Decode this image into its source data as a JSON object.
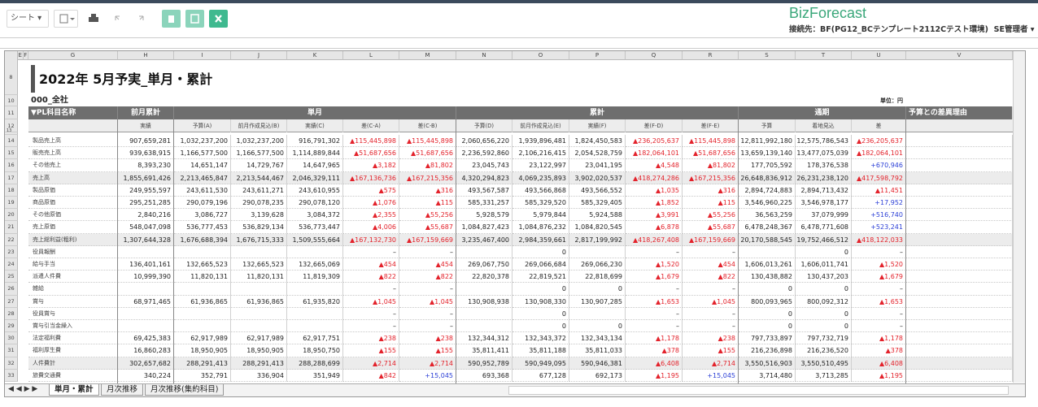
{
  "toolbar": {
    "sheet_menu": "シート",
    "brand": "BizForecast",
    "connection": "接続先：BF(PG12_BCテンプレート2112Cテスト環境)",
    "user": "SE管理者"
  },
  "column_letters": [
    "E",
    "F",
    "G",
    "H",
    "I",
    "J",
    "K",
    "L",
    "M",
    "N",
    "O",
    "P",
    "Q",
    "R",
    "S",
    "T",
    "U",
    "V"
  ],
  "title_row": {
    "row_number": "8",
    "title": "2022年 5月予実_単月・累計"
  },
  "dept_row": {
    "row_number": "10",
    "dept": "000_全社",
    "unit": "単位：円"
  },
  "header_row": {
    "row_number": "11",
    "item": "▼PL科目名称",
    "groups": [
      "前月累計",
      "単月",
      "累計",
      "通期",
      "予算との差異理由"
    ]
  },
  "subheader_row": {
    "row_number": "12",
    "labels": [
      "実績",
      "予算(A)",
      "前月作成見込(B)",
      "実績(C)",
      "差(C-A)",
      "差(C-B)",
      "予算(D)",
      "前月作成見込(E)",
      "実績(F)",
      "差(F-D)",
      "差(F-E)",
      "予算",
      "着地見込",
      "差"
    ]
  },
  "spacer_row_number": "13",
  "rows": [
    {
      "row_number": "14",
      "name": "製品売上高",
      "shaded": false,
      "cells": [
        "907,659,281",
        "1,032,237,200",
        "1,032,237,200",
        "916,791,302",
        "▲115,445,898",
        "▲115,445,898",
        "2,060,656,220",
        "1,939,896,481",
        "1,824,450,583",
        "▲236,205,637",
        "▲115,445,898",
        "12,811,992,180",
        "12,575,786,543",
        "▲236,205,637"
      ]
    },
    {
      "row_number": "15",
      "name": "販売売上高",
      "shaded": false,
      "cells": [
        "939,638,915",
        "1,166,577,500",
        "1,166,577,500",
        "1,114,889,844",
        "▲51,687,656",
        "▲51,687,656",
        "2,236,592,860",
        "2,106,216,415",
        "2,054,528,759",
        "▲182,064,101",
        "▲51,687,656",
        "13,659,139,140",
        "13,477,075,039",
        "▲182,064,101"
      ]
    },
    {
      "row_number": "16",
      "name": "その他売上",
      "shaded": false,
      "cells": [
        "8,393,230",
        "14,651,147",
        "14,729,767",
        "14,647,965",
        "▲3,182",
        "▲81,802",
        "23,045,743",
        "23,122,997",
        "23,041,195",
        "▲4,548",
        "▲81,802",
        "177,705,592",
        "178,376,538",
        "+670,946"
      ]
    },
    {
      "row_number": "17",
      "name": "売上高",
      "shaded": true,
      "cells": [
        "1,855,691,426",
        "2,213,465,847",
        "2,213,544,467",
        "2,046,329,111",
        "▲167,136,736",
        "▲167,215,356",
        "4,320,294,823",
        "4,069,235,893",
        "3,902,020,537",
        "▲418,274,286",
        "▲167,215,356",
        "26,648,836,912",
        "26,231,238,120",
        "▲417,598,792"
      ]
    },
    {
      "row_number": "18",
      "name": "製品原価",
      "shaded": false,
      "cells": [
        "249,955,597",
        "243,611,530",
        "243,611,271",
        "243,610,955",
        "▲575",
        "▲316",
        "493,567,587",
        "493,566,868",
        "493,566,552",
        "▲1,035",
        "▲316",
        "2,894,724,883",
        "2,894,713,432",
        "▲11,451"
      ]
    },
    {
      "row_number": "19",
      "name": "商品原価",
      "shaded": false,
      "cells": [
        "295,251,285",
        "290,079,196",
        "290,078,235",
        "290,078,120",
        "▲1,076",
        "▲115",
        "585,331,257",
        "585,329,520",
        "585,329,405",
        "▲1,852",
        "▲115",
        "3,546,960,225",
        "3,546,978,177",
        "+17,952"
      ]
    },
    {
      "row_number": "20",
      "name": "その他原価",
      "shaded": false,
      "cells": [
        "2,840,216",
        "3,086,727",
        "3,139,628",
        "3,084,372",
        "▲2,355",
        "▲55,256",
        "5,928,579",
        "5,979,844",
        "5,924,588",
        "▲3,991",
        "▲55,256",
        "36,563,259",
        "37,079,999",
        "+516,740"
      ]
    },
    {
      "row_number": "21",
      "name": "売上原価",
      "shaded": false,
      "cells": [
        "548,047,098",
        "536,777,453",
        "536,829,134",
        "536,773,447",
        "▲4,006",
        "▲55,687",
        "1,084,827,423",
        "1,084,876,232",
        "1,084,820,545",
        "▲6,878",
        "▲55,687",
        "6,478,248,367",
        "6,478,771,608",
        "+523,241"
      ]
    },
    {
      "row_number": "22",
      "name": "売上総利益(粗利)",
      "shaded": true,
      "cells": [
        "1,307,644,328",
        "1,676,688,394",
        "1,676,715,333",
        "1,509,555,664",
        "▲167,132,730",
        "▲167,159,669",
        "3,235,467,400",
        "2,984,359,661",
        "2,817,199,992",
        "▲418,267,408",
        "▲167,159,669",
        "20,170,588,545",
        "19,752,466,512",
        "▲418,122,033"
      ]
    },
    {
      "row_number": "23",
      "name": "役員報酬",
      "shaded": false,
      "cells": [
        null,
        null,
        null,
        null,
        "–",
        "–",
        null,
        "0",
        null,
        "–",
        "–",
        null,
        "0",
        "–"
      ]
    },
    {
      "row_number": "24",
      "name": "給与手当",
      "shaded": false,
      "cells": [
        "136,401,161",
        "132,665,523",
        "132,665,523",
        "132,665,069",
        "▲454",
        "▲454",
        "269,067,750",
        "269,066,684",
        "269,066,230",
        "▲1,520",
        "▲454",
        "1,606,013,261",
        "1,606,011,741",
        "▲1,520"
      ]
    },
    {
      "row_number": "25",
      "name": "派遣人件費",
      "shaded": false,
      "cells": [
        "10,999,390",
        "11,820,131",
        "11,820,131",
        "11,819,309",
        "▲822",
        "▲822",
        "22,820,378",
        "22,819,521",
        "22,818,699",
        "▲1,679",
        "▲822",
        "130,438,882",
        "130,437,203",
        "▲1,679"
      ]
    },
    {
      "row_number": "26",
      "name": "雑給",
      "shaded": false,
      "cells": [
        null,
        null,
        null,
        null,
        "–",
        "–",
        null,
        "0",
        "0",
        "–",
        "–",
        "0",
        "0",
        "–"
      ]
    },
    {
      "row_number": "27",
      "name": "賞与",
      "shaded": false,
      "cells": [
        "68,971,465",
        "61,936,865",
        "61,936,865",
        "61,935,820",
        "▲1,045",
        "▲1,045",
        "130,908,938",
        "130,908,330",
        "130,907,285",
        "▲1,653",
        "▲1,045",
        "800,093,965",
        "800,092,312",
        "▲1,653"
      ]
    },
    {
      "row_number": "28",
      "name": "役員賞与",
      "shaded": false,
      "cells": [
        null,
        null,
        null,
        null,
        "–",
        "–",
        null,
        "0",
        null,
        "–",
        "–",
        "0",
        "0",
        "–"
      ]
    },
    {
      "row_number": "29",
      "name": "賞与引当金繰入",
      "shaded": false,
      "cells": [
        null,
        null,
        null,
        null,
        "–",
        "–",
        null,
        "0",
        "0",
        "–",
        "–",
        "0",
        "0",
        "–"
      ]
    },
    {
      "row_number": "30",
      "name": "法定福利費",
      "shaded": false,
      "cells": [
        "69,425,383",
        "62,917,989",
        "62,917,989",
        "62,917,751",
        "▲238",
        "▲238",
        "132,344,312",
        "132,343,372",
        "132,343,134",
        "▲1,178",
        "▲238",
        "797,733,897",
        "797,732,719",
        "▲1,178"
      ]
    },
    {
      "row_number": "31",
      "name": "福利厚生費",
      "shaded": false,
      "cells": [
        "16,860,283",
        "18,950,905",
        "18,950,905",
        "18,950,750",
        "▲155",
        "▲155",
        "35,811,411",
        "35,811,188",
        "35,811,033",
        "▲378",
        "▲155",
        "216,236,898",
        "216,236,520",
        "▲378"
      ]
    },
    {
      "row_number": "32",
      "name": "人件費計",
      "shaded": true,
      "cells": [
        "302,657,682",
        "288,291,413",
        "288,291,413",
        "288,288,699",
        "▲2,714",
        "▲2,714",
        "590,952,789",
        "590,949,095",
        "590,946,381",
        "▲6,408",
        "▲2,714",
        "3,550,516,903",
        "3,550,510,495",
        "▲6,408"
      ]
    },
    {
      "row_number": "33",
      "name": "旅費交通費",
      "shaded": false,
      "cells": [
        "340,224",
        "352,791",
        "336,904",
        "351,949",
        "▲842",
        "+15,045",
        "693,368",
        "677,128",
        "692,173",
        "▲1,195",
        "+15,045",
        "3,714,480",
        "3,713,285",
        "▲1,195"
      ]
    }
  ],
  "tabs": [
    "単月・累計",
    "月次推移",
    "月次推移(集約科目)"
  ]
}
